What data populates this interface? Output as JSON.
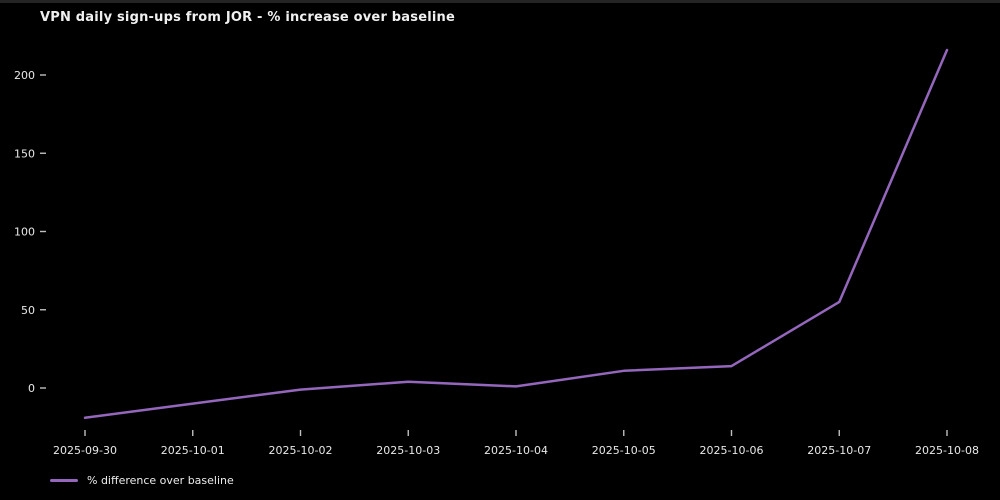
{
  "figure": {
    "title": "VPN daily sign-ups from JOR - % increase over baseline"
  },
  "legend": {
    "label": "% difference over baseline"
  },
  "colors": {
    "background": "#000000",
    "line": "#9467bd",
    "text": "#e8e8e8",
    "tick": "#bfbfbf"
  },
  "chart_data": {
    "type": "line",
    "title": "VPN daily sign-ups from JOR - % increase over baseline",
    "categories": [
      "2025-09-30",
      "2025-10-01",
      "2025-10-02",
      "2025-10-03",
      "2025-10-04",
      "2025-10-05",
      "2025-10-06",
      "2025-10-07",
      "2025-10-08"
    ],
    "series": [
      {
        "name": "% difference over baseline",
        "color": "#9467bd",
        "values": [
          -19,
          -10,
          -1,
          4,
          1,
          11,
          14,
          55,
          216
        ]
      }
    ],
    "xlabel": "",
    "ylabel": "",
    "yticks": [
      0,
      50,
      100,
      150,
      200
    ],
    "ylim": [
      -32,
      230
    ],
    "grid": false,
    "legend_position": "bottom-left",
    "theme": "dark"
  }
}
